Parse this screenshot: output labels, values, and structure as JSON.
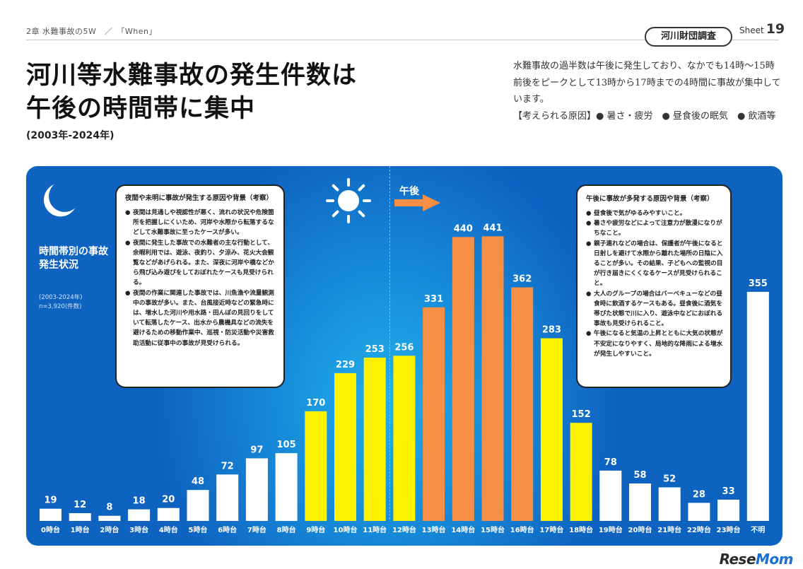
{
  "header": {
    "breadcrumb": "2章 水難事故の5W　／　「When」",
    "survey_badge": "河川財団調査",
    "sheet_label": "Sheet",
    "sheet_number": "19"
  },
  "title": {
    "line1": "河川等水難事故の発生件数は",
    "line2": "午後の時間帯に集中",
    "subtitle": "(2003年-2024年)"
  },
  "summary": {
    "text": "水難事故の過半数は午後に発生しており、なかでも14時〜15時前後をピークとして13時から17時までの4時間に事故が集中しています。",
    "causes": "【考えられる原因】● 暑さ・疲労　● 昼食後の眠気　● 飲酒等"
  },
  "left_panel": {
    "heading": "時間帯別の事故発生状況",
    "note": "(2003-2024年)\nn=3,920(件数)"
  },
  "pm_label": "午後",
  "bubble_left": {
    "title": "夜間や未明に事故が発生する原因や背景（考察）",
    "items": [
      "夜間は見通しや視認性が悪く、流れの状況や危険箇所を把握しにくいため、河岸や水際から転落するなどして水難事故に至ったケースが多い。",
      "夜間に発生した事故での水難者の主な行動として、余暇利用では、遊泳、夜釣り、夕涼み、花火大会観覧などがあげられる。また、深夜に河岸や橋などから飛び込み遊びをしておぼれたケースも見受けられる。",
      "夜間の作業に関連した事故では、川魚漁や流量観測中の事故が多い。また、台風接近時などの緊急時には、増水した河川や用水路・田んぼの見回りをしていて転落したケース、出水から農機具などの流失を避けるための移動作業中、巡視・防災活動や災害救助活動に従事中の事故が見受けられる。"
    ]
  },
  "bubble_right": {
    "title": "午後に事故が多発する原因や背景（考察）",
    "items": [
      "昼食後で気がゆるみやすいこと。",
      "暑さや疲労などによって注意力が散漫になりがちなこと。",
      "親子連れなどの場合は、保護者が午後になると日射しを避けて水際から離れた場所の日陰に入ることが多い。その結果、子どもへの監視の目が行き届きにくくなるケースが見受けられること。",
      "大人のグループの場合はバーベキューなどの昼食時に飲酒するケースもある。昼食後に酒気を帯びた状態で川に入り、遊泳中などにおぼれる事故も見受けられること。",
      "午後になると気温の上昇とともに大気の状態が不安定になりやすく、局地的な降雨による増水が発生しやすいこと。"
    ]
  },
  "chart_data": {
    "type": "bar",
    "categories": [
      "0時台",
      "1時台",
      "2時台",
      "3時台",
      "4時台",
      "5時台",
      "6時台",
      "7時台",
      "8時台",
      "9時台",
      "10時台",
      "11時台",
      "12時台",
      "13時台",
      "14時台",
      "15時台",
      "16時台",
      "17時台",
      "18時台",
      "19時台",
      "20時台",
      "21時台",
      "22時台",
      "23時台",
      "不明"
    ],
    "values": [
      19,
      12,
      8,
      18,
      20,
      48,
      72,
      97,
      105,
      170,
      229,
      253,
      256,
      331,
      440,
      441,
      362,
      283,
      152,
      78,
      58,
      52,
      28,
      33,
      355
    ],
    "bar_colors": [
      "#ffffff",
      "#ffffff",
      "#ffffff",
      "#ffffff",
      "#ffffff",
      "#ffffff",
      "#ffffff",
      "#ffffff",
      "#ffffff",
      "#fff200",
      "#fff200",
      "#fff200",
      "#fff200",
      "#f58f45",
      "#f58f45",
      "#f58f45",
      "#f58f45",
      "#fff200",
      "#fff200",
      "#ffffff",
      "#ffffff",
      "#ffffff",
      "#ffffff",
      "#ffffff",
      "#ffffff"
    ],
    "ylim": [
      0,
      460
    ]
  },
  "watermark": {
    "part1": "Rese",
    "part2": "Mom"
  }
}
